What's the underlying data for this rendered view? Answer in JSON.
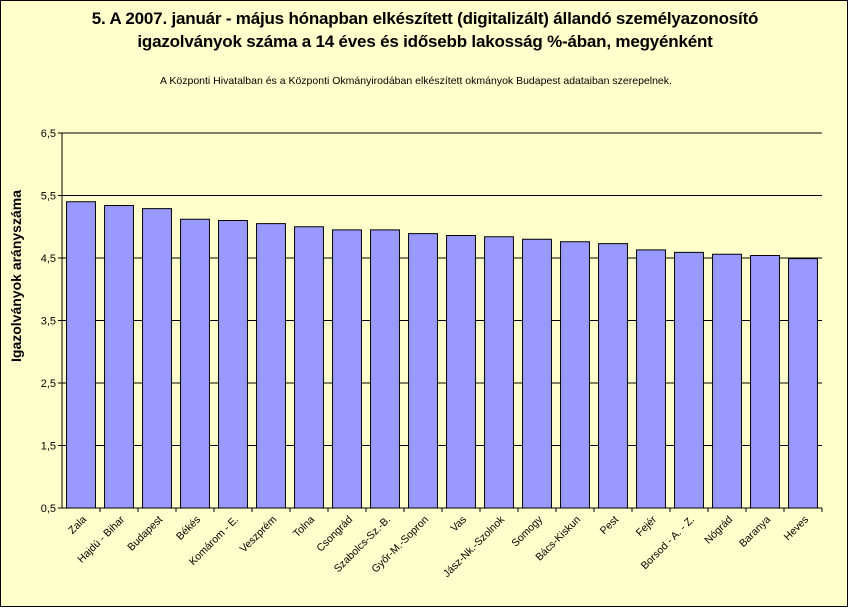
{
  "chart_data": {
    "type": "bar",
    "title_line1": "5. A 2007. január - május hónapban elkészített (digitalizált) állandó személyazonosító",
    "title_line2": "igazolványok száma a 14 éves és idősebb lakosság %-ában, megyénként",
    "subtitle": "A  Központi Hivatalban és a Központi Okmányirodában elkészített  okmányok Budapest adataiban szerepelnek.",
    "ylabel": "Igazolványok arányszáma",
    "xlabel": "",
    "ylim": [
      0.5,
      6.5
    ],
    "yticks": [
      "0,5",
      "1,5",
      "2,5",
      "3,5",
      "4,5",
      "5,5",
      "6,5"
    ],
    "ytick_values": [
      0.5,
      1.5,
      2.5,
      3.5,
      4.5,
      5.5,
      6.5
    ],
    "grid": true,
    "bar_color": "#9999ff",
    "background": "#ffffcc",
    "categories": [
      "Zala",
      "Hajdú - Bihar",
      "Budapest",
      "Békés",
      "Komárom - E.",
      "Veszprém",
      "Tolna",
      "Csongrád",
      "Szabolcs-Sz.-B.",
      "Győr-M.-Sopron",
      "Vas",
      "Jász-Nk.-Szolnok",
      "Somogy",
      "Bács-Kiskun",
      "Pest",
      "Fejér",
      "Borsod - A. - Z.",
      "Nógrád",
      "Baranya",
      "Heves"
    ],
    "values": [
      5.4,
      5.34,
      5.29,
      5.12,
      5.1,
      5.05,
      5.0,
      4.95,
      4.95,
      4.89,
      4.86,
      4.84,
      4.8,
      4.76,
      4.73,
      4.63,
      4.59,
      4.56,
      4.54,
      4.49
    ]
  }
}
